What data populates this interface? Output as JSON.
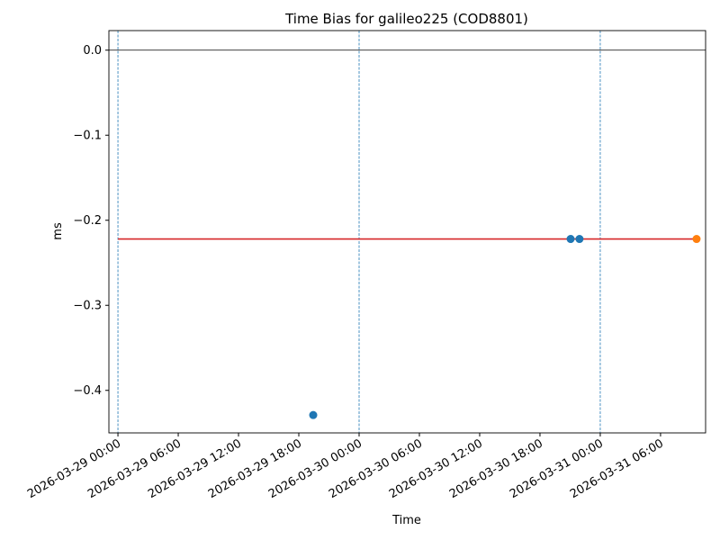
{
  "chart_data": {
    "type": "scatter",
    "title": "Time Bias for galileo225 (COD8801)",
    "x_label": "Time",
    "y_label": "ms",
    "xlim": [
      "2026-03-28 23:06",
      "2026-03-31 10:29"
    ],
    "xticks": [
      "2026-03-29 00:00",
      "2026-03-29 06:00",
      "2026-03-29 12:00",
      "2026-03-29 18:00",
      "2026-03-30 00:00",
      "2026-03-30 06:00",
      "2026-03-30 12:00",
      "2026-03-30 18:00",
      "2026-03-31 00:00",
      "2026-03-31 06:00"
    ],
    "ylim": [
      -0.45,
      0.023
    ],
    "yticks": [
      {
        "value": 0,
        "label": "0.0"
      },
      {
        "value": -0.1,
        "label": "−0.1"
      },
      {
        "value": -0.2,
        "label": "−0.2"
      },
      {
        "value": -0.3,
        "label": "−0.3"
      },
      {
        "value": -0.4,
        "label": "−0.4"
      }
    ],
    "hline": {
      "value": 0,
      "color": "#000000"
    },
    "vlines": {
      "x": [
        "2026-03-29 00:00",
        "2026-03-30 00:00",
        "2026-03-31 00:00"
      ],
      "color": "#1f77b4"
    },
    "series": [
      {
        "style": "line",
        "color": "#d62728",
        "x": [
          "2026-03-29 00:00",
          "2026-03-31 09:35"
        ],
        "values": [
          -0.222,
          -0.222
        ]
      },
      {
        "style": "marker",
        "color": "#1f77b4",
        "x": [
          "2026-03-29 19:26",
          "2026-03-30 21:03",
          "2026-03-30 21:56"
        ],
        "values": [
          -0.429,
          -0.222,
          -0.222
        ]
      },
      {
        "style": "marker",
        "color": "#ff7f0e",
        "x": [
          "2026-03-31 09:35"
        ],
        "values": [
          -0.222
        ]
      }
    ]
  }
}
